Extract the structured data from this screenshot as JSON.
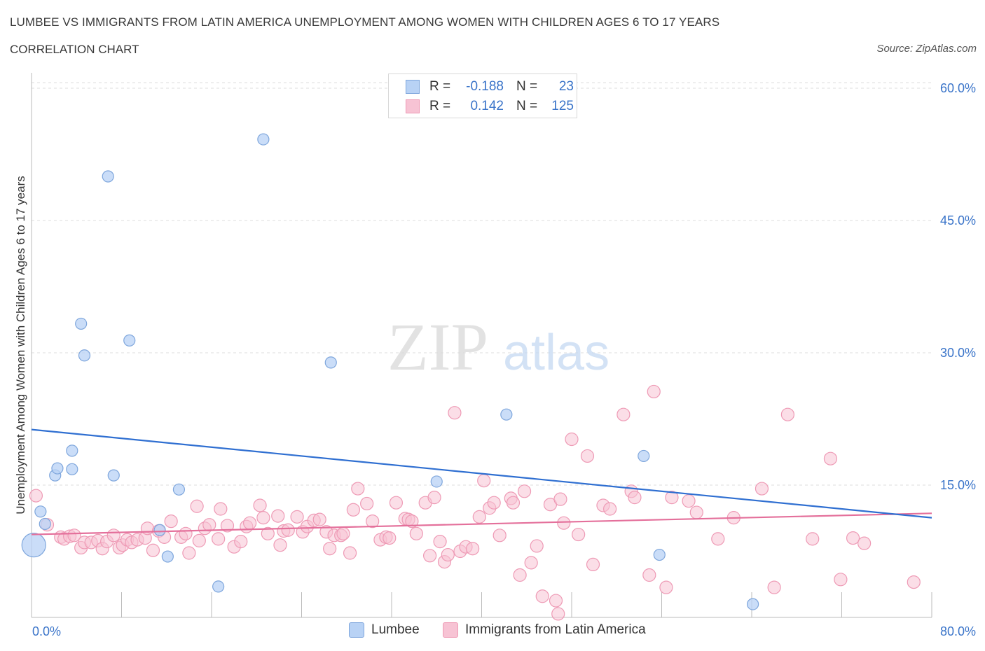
{
  "header": {
    "title": "LUMBEE VS IMMIGRANTS FROM LATIN AMERICA UNEMPLOYMENT AMONG WOMEN WITH CHILDREN AGES 6 TO 17 YEARS",
    "subtitle": "CORRELATION CHART",
    "source": "Source: ZipAtlas.com"
  },
  "watermark": {
    "zip": "ZIP",
    "atlas": "atlas"
  },
  "legend": {
    "rows": [
      {
        "r_label": "R =",
        "r_value": "-0.188",
        "n_label": "N =",
        "n_value": "23"
      },
      {
        "r_label": "R =",
        "r_value": "0.142",
        "n_label": "N =",
        "n_value": "125"
      }
    ]
  },
  "bottom_legend": {
    "series1": "Lumbee",
    "series2": "Immigrants from Latin America"
  },
  "colors": {
    "lumbee_fill": "#b8d2f5",
    "lumbee_stroke": "#7ea6dc",
    "lumbee_line": "#2f6fd1",
    "latin_fill": "#f7c3d4",
    "latin_stroke": "#ee9ab5",
    "latin_line": "#e4709b",
    "tick_label": "#3a74c9",
    "grid": "#dddddd"
  },
  "chart_data": {
    "type": "scatter",
    "title": "LUMBEE VS IMMIGRANTS FROM LATIN AMERICA UNEMPLOYMENT AMONG WOMEN WITH CHILDREN AGES 6 TO 17 YEARS",
    "xlabel": "",
    "ylabel": "Unemployment Among Women with Children Ages 6 to 17 years",
    "xlim": [
      0,
      80
    ],
    "ylim": [
      0,
      60
    ],
    "x_tick_labels": [
      "0.0%",
      "80.0%"
    ],
    "y_tick_values": [
      15,
      30,
      45,
      60
    ],
    "y_tick_labels": [
      "15.0%",
      "30.0%",
      "45.0%",
      "60.0%"
    ],
    "grid": true,
    "legend_position": "top-center",
    "series": [
      {
        "name": "Lumbee",
        "r": -0.188,
        "n": 23,
        "trend": {
          "x": [
            0,
            80
          ],
          "y": [
            21.3,
            11.3
          ]
        },
        "points": [
          [
            0.2,
            8.2,
            "big"
          ],
          [
            0.8,
            12.0
          ],
          [
            1.2,
            10.6
          ],
          [
            2.1,
            16.1
          ],
          [
            2.3,
            16.9
          ],
          [
            3.6,
            16.8
          ],
          [
            3.6,
            18.9
          ],
          [
            4.4,
            33.3
          ],
          [
            4.7,
            29.7
          ],
          [
            6.8,
            50.0
          ],
          [
            7.3,
            16.1
          ],
          [
            8.7,
            31.4
          ],
          [
            11.4,
            9.9
          ],
          [
            12.1,
            6.9
          ],
          [
            13.1,
            14.5
          ],
          [
            16.6,
            3.5
          ],
          [
            20.6,
            54.2
          ],
          [
            26.6,
            28.9
          ],
          [
            36.0,
            15.4
          ],
          [
            42.2,
            23.0
          ],
          [
            54.4,
            18.3
          ],
          [
            55.8,
            7.1
          ],
          [
            64.1,
            1.5
          ]
        ]
      },
      {
        "name": "Immigrants from Latin America",
        "r": 0.142,
        "n": 125,
        "trend": {
          "x": [
            0,
            80
          ],
          "y": [
            9.4,
            11.8
          ]
        },
        "points": [
          [
            0.4,
            13.8
          ],
          [
            1.4,
            10.5
          ],
          [
            2.6,
            9.1
          ],
          [
            2.9,
            8.9
          ],
          [
            3.4,
            9.2
          ],
          [
            3.8,
            9.3
          ],
          [
            4.4,
            7.9
          ],
          [
            4.7,
            8.5
          ],
          [
            5.3,
            8.5
          ],
          [
            5.9,
            8.7
          ],
          [
            6.3,
            7.8
          ],
          [
            6.7,
            8.6
          ],
          [
            7.3,
            9.3
          ],
          [
            7.8,
            7.9
          ],
          [
            8.1,
            8.2
          ],
          [
            8.5,
            8.8
          ],
          [
            8.9,
            8.5
          ],
          [
            9.4,
            8.8
          ],
          [
            10.1,
            9.0
          ],
          [
            10.3,
            10.1
          ],
          [
            10.8,
            7.6
          ],
          [
            11.3,
            9.8
          ],
          [
            11.8,
            9.1
          ],
          [
            12.4,
            10.9
          ],
          [
            13.3,
            9.1
          ],
          [
            13.7,
            9.5
          ],
          [
            14.0,
            7.3
          ],
          [
            14.7,
            12.6
          ],
          [
            14.9,
            8.7
          ],
          [
            15.4,
            10.1
          ],
          [
            15.8,
            10.5
          ],
          [
            16.6,
            8.9
          ],
          [
            16.8,
            12.3
          ],
          [
            17.4,
            10.4
          ],
          [
            18.0,
            8.0
          ],
          [
            18.6,
            8.6
          ],
          [
            19.1,
            10.3
          ],
          [
            19.4,
            10.7
          ],
          [
            20.3,
            12.7
          ],
          [
            20.6,
            11.3
          ],
          [
            21.0,
            9.5
          ],
          [
            21.9,
            11.5
          ],
          [
            22.1,
            8.2
          ],
          [
            22.4,
            9.8
          ],
          [
            22.8,
            9.9
          ],
          [
            23.6,
            11.4
          ],
          [
            24.1,
            9.7
          ],
          [
            24.5,
            10.3
          ],
          [
            25.1,
            11.0
          ],
          [
            25.6,
            11.1
          ],
          [
            26.2,
            9.7
          ],
          [
            26.5,
            7.8
          ],
          [
            26.9,
            9.3
          ],
          [
            27.5,
            9.3
          ],
          [
            27.7,
            9.5
          ],
          [
            28.3,
            7.3
          ],
          [
            28.6,
            12.2
          ],
          [
            29.0,
            14.6
          ],
          [
            29.8,
            12.9
          ],
          [
            30.3,
            10.9
          ],
          [
            31.0,
            8.8
          ],
          [
            31.5,
            9.1
          ],
          [
            31.8,
            9.0
          ],
          [
            32.4,
            13.0
          ],
          [
            33.2,
            11.2
          ],
          [
            33.5,
            11.1
          ],
          [
            33.8,
            10.9
          ],
          [
            34.2,
            9.5
          ],
          [
            35.0,
            13.0
          ],
          [
            35.4,
            7.0
          ],
          [
            35.8,
            13.6
          ],
          [
            36.3,
            8.6
          ],
          [
            36.7,
            6.3
          ],
          [
            37.0,
            7.1
          ],
          [
            37.6,
            23.2
          ],
          [
            38.1,
            7.5
          ],
          [
            38.6,
            8.0
          ],
          [
            39.2,
            7.8
          ],
          [
            39.8,
            11.4
          ],
          [
            40.2,
            15.5
          ],
          [
            40.7,
            12.4
          ],
          [
            41.1,
            13.0
          ],
          [
            41.6,
            9.3
          ],
          [
            42.6,
            13.5
          ],
          [
            42.8,
            13.0
          ],
          [
            43.4,
            4.8
          ],
          [
            43.8,
            14.3
          ],
          [
            44.4,
            6.2
          ],
          [
            44.9,
            8.1
          ],
          [
            45.4,
            2.4
          ],
          [
            46.1,
            12.8
          ],
          [
            46.6,
            1.9
          ],
          [
            47.0,
            13.4
          ],
          [
            47.3,
            10.7
          ],
          [
            48.0,
            20.2
          ],
          [
            48.6,
            9.4
          ],
          [
            49.4,
            18.3
          ],
          [
            49.9,
            6.0
          ],
          [
            50.8,
            12.7
          ],
          [
            51.4,
            12.3
          ],
          [
            52.6,
            23.0
          ],
          [
            53.3,
            14.3
          ],
          [
            53.6,
            13.6
          ],
          [
            54.9,
            4.8
          ],
          [
            55.3,
            25.6
          ],
          [
            56.4,
            3.4
          ],
          [
            56.9,
            13.6
          ],
          [
            58.4,
            13.2
          ],
          [
            59.1,
            11.9
          ],
          [
            61.0,
            8.9
          ],
          [
            62.4,
            11.3
          ],
          [
            64.9,
            14.6
          ],
          [
            66.0,
            3.4
          ],
          [
            67.2,
            23.0
          ],
          [
            69.4,
            8.9
          ],
          [
            71.0,
            18.0
          ],
          [
            71.9,
            4.3
          ],
          [
            73.0,
            9.0
          ],
          [
            74.0,
            8.4
          ],
          [
            78.4,
            4.0
          ],
          [
            46.8,
            0.4
          ]
        ]
      }
    ]
  }
}
